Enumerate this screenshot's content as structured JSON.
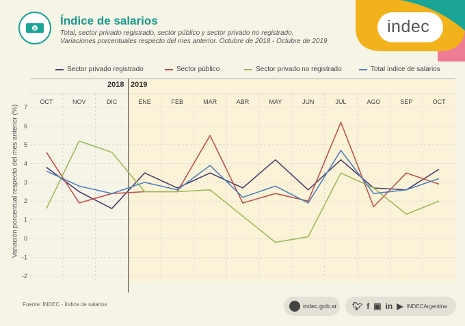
{
  "header": {
    "title": "Índice de salarios",
    "subtitle_line1": "Total, sector privado registrado, sector público y sector privado no registrado.",
    "subtitle_line2": "Variaciones porcentuales respecto del mes anterior. Octubre de 2018 - Octubre de 2019",
    "icon": "banknote-icon"
  },
  "brand": {
    "logo_text": "indec",
    "colors": {
      "yellow": "#f2b21c",
      "pink": "#ee7c94",
      "teal": "#1aa597"
    }
  },
  "chart_data": {
    "type": "line",
    "categories": [
      "OCT",
      "NOV",
      "DIC",
      "ENE",
      "FEB",
      "MAR",
      "ABR",
      "MAY",
      "JUN",
      "JUL",
      "AGO",
      "SEP",
      "OCT"
    ],
    "year_labels": [
      "2018",
      "2019"
    ],
    "ylabel": "Variación porcentual respecto del mes anterior (%)",
    "ylim": [
      -2,
      7
    ],
    "yticks": [
      "7",
      "6",
      "5",
      "4",
      "3",
      "2",
      "1",
      "0",
      "-1",
      "-2"
    ],
    "grid": true,
    "legend_position": "top",
    "series": [
      {
        "name": "Sector privado registrado",
        "color": "#4b3f6e",
        "values": [
          3.8,
          2.5,
          1.6,
          3.5,
          2.7,
          3.5,
          2.7,
          4.2,
          2.6,
          4.2,
          2.7,
          2.6,
          3.7
        ]
      },
      {
        "name": "Sector público",
        "color": "#c0504d",
        "values": [
          4.6,
          1.9,
          2.4,
          2.5,
          2.5,
          5.5,
          1.9,
          2.4,
          2.0,
          6.2,
          1.7,
          3.5,
          2.9
        ]
      },
      {
        "name": "Sector privado no registrado",
        "color": "#9bbb59",
        "values": [
          1.6,
          5.2,
          4.6,
          2.5,
          2.5,
          2.6,
          1.2,
          -0.2,
          0.1,
          3.5,
          2.7,
          1.3,
          2.0
        ]
      },
      {
        "name": "Total índice de salarios",
        "color": "#4f81bd",
        "values": [
          3.6,
          2.8,
          2.4,
          3.0,
          2.6,
          3.9,
          2.2,
          2.8,
          1.9,
          4.7,
          2.4,
          2.6,
          3.2
        ]
      }
    ]
  },
  "footer": {
    "source": "Fuente: INDEC - Índice de salarios",
    "website": "indec.gob.ar",
    "social_handle": "INDECArgentina",
    "social_icons": [
      "twitter-icon",
      "facebook-icon",
      "instagram-icon",
      "linkedin-icon",
      "youtube-icon"
    ]
  }
}
